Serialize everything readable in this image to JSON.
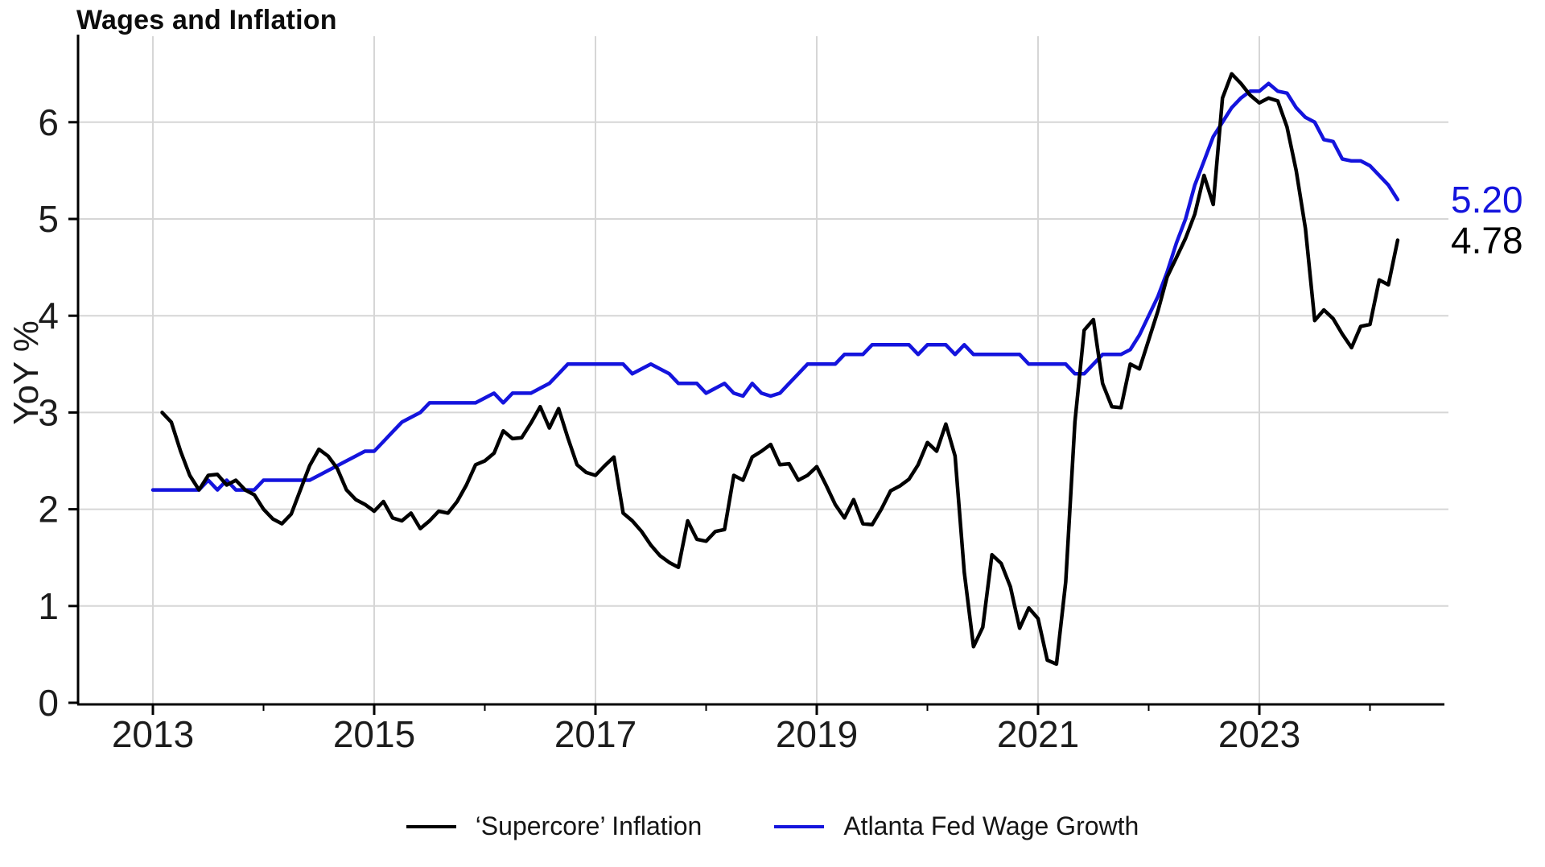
{
  "title": "Wages and Inflation",
  "y_axis": {
    "label": "YoY %",
    "ticks": [
      0,
      1,
      2,
      3,
      4,
      5,
      6
    ],
    "ylim": [
      0,
      6.75
    ]
  },
  "x_axis": {
    "labeled_ticks": [
      2013,
      2015,
      2017,
      2019,
      2021,
      2023
    ],
    "minor_ticks": [
      2014,
      2016,
      2018,
      2020,
      2022,
      2024
    ]
  },
  "colors": {
    "grid": "#d6d6d6",
    "axis": "#000000",
    "tick_text": "#1c1c1c"
  },
  "chart_data": {
    "type": "line",
    "title": "Wages and Inflation",
    "ylabel": "YoY %",
    "x_start": "2013-01",
    "x_frequency": "monthly",
    "grid": true,
    "legend_position": "bottom",
    "series": [
      {
        "name": "‘Supercore’ Inflation",
        "color": "#000000",
        "end_label": "4.78",
        "start_month_offset": 1,
        "values": [
          3.0,
          2.9,
          2.6,
          2.35,
          2.2,
          2.35,
          2.36,
          2.25,
          2.3,
          2.2,
          2.15,
          2.0,
          1.9,
          1.85,
          1.95,
          2.2,
          2.45,
          2.62,
          2.55,
          2.42,
          2.2,
          2.1,
          2.05,
          1.98,
          2.08,
          1.91,
          1.88,
          1.96,
          1.8,
          1.88,
          1.98,
          1.96,
          2.08,
          2.25,
          2.46,
          2.5,
          2.58,
          2.81,
          2.73,
          2.74,
          2.89,
          3.06,
          2.84,
          3.04,
          2.74,
          2.46,
          2.38,
          2.35,
          2.45,
          2.54,
          1.96,
          1.88,
          1.77,
          1.63,
          1.52,
          1.45,
          1.4,
          1.88,
          1.69,
          1.67,
          1.77,
          1.79,
          2.35,
          2.3,
          2.54,
          2.6,
          2.67,
          2.46,
          2.47,
          2.3,
          2.35,
          2.44,
          2.25,
          2.05,
          1.91,
          2.1,
          1.85,
          1.84,
          2.0,
          2.19,
          2.24,
          2.31,
          2.46,
          2.69,
          2.6,
          2.88,
          2.55,
          1.35,
          0.58,
          0.78,
          1.53,
          1.44,
          1.2,
          0.77,
          0.98,
          0.87,
          0.44,
          0.4,
          1.25,
          2.9,
          3.85,
          3.96,
          3.3,
          3.06,
          3.05,
          3.5,
          3.45,
          3.75,
          4.05,
          4.4,
          4.6,
          4.8,
          5.05,
          5.45,
          5.15,
          6.25,
          6.5,
          6.4,
          6.28,
          6.2,
          6.25,
          6.22,
          5.95,
          5.5,
          4.9,
          3.95,
          4.06,
          3.97,
          3.81,
          3.67,
          3.89,
          3.91,
          4.37,
          4.32,
          4.78
        ]
      },
      {
        "name": "Atlanta Fed Wage Growth",
        "color": "#1414dd",
        "end_label": "5.20",
        "start_month_offset": 0,
        "values": [
          2.2,
          2.2,
          2.2,
          2.2,
          2.2,
          2.2,
          2.3,
          2.2,
          2.3,
          2.2,
          2.2,
          2.2,
          2.3,
          2.3,
          2.3,
          2.3,
          2.3,
          2.3,
          2.35,
          2.4,
          2.45,
          2.5,
          2.55,
          2.6,
          2.6,
          2.7,
          2.8,
          2.9,
          2.95,
          3.0,
          3.1,
          3.1,
          3.1,
          3.1,
          3.1,
          3.1,
          3.15,
          3.2,
          3.1,
          3.2,
          3.2,
          3.2,
          3.25,
          3.3,
          3.4,
          3.5,
          3.5,
          3.5,
          3.5,
          3.5,
          3.5,
          3.5,
          3.4,
          3.45,
          3.5,
          3.45,
          3.4,
          3.3,
          3.3,
          3.3,
          3.2,
          3.25,
          3.3,
          3.2,
          3.17,
          3.3,
          3.2,
          3.17,
          3.2,
          3.3,
          3.4,
          3.5,
          3.5,
          3.5,
          3.5,
          3.6,
          3.6,
          3.6,
          3.7,
          3.7,
          3.7,
          3.7,
          3.7,
          3.6,
          3.7,
          3.7,
          3.7,
          3.6,
          3.7,
          3.6,
          3.6,
          3.6,
          3.6,
          3.6,
          3.6,
          3.5,
          3.5,
          3.5,
          3.5,
          3.5,
          3.4,
          3.4,
          3.5,
          3.6,
          3.6,
          3.6,
          3.65,
          3.8,
          4.0,
          4.2,
          4.45,
          4.75,
          5.0,
          5.35,
          5.6,
          5.85,
          6.0,
          6.15,
          6.25,
          6.32,
          6.32,
          6.4,
          6.32,
          6.3,
          6.15,
          6.05,
          6.0,
          5.82,
          5.8,
          5.62,
          5.6,
          5.6,
          5.55,
          5.45,
          5.35,
          5.2
        ]
      }
    ]
  }
}
